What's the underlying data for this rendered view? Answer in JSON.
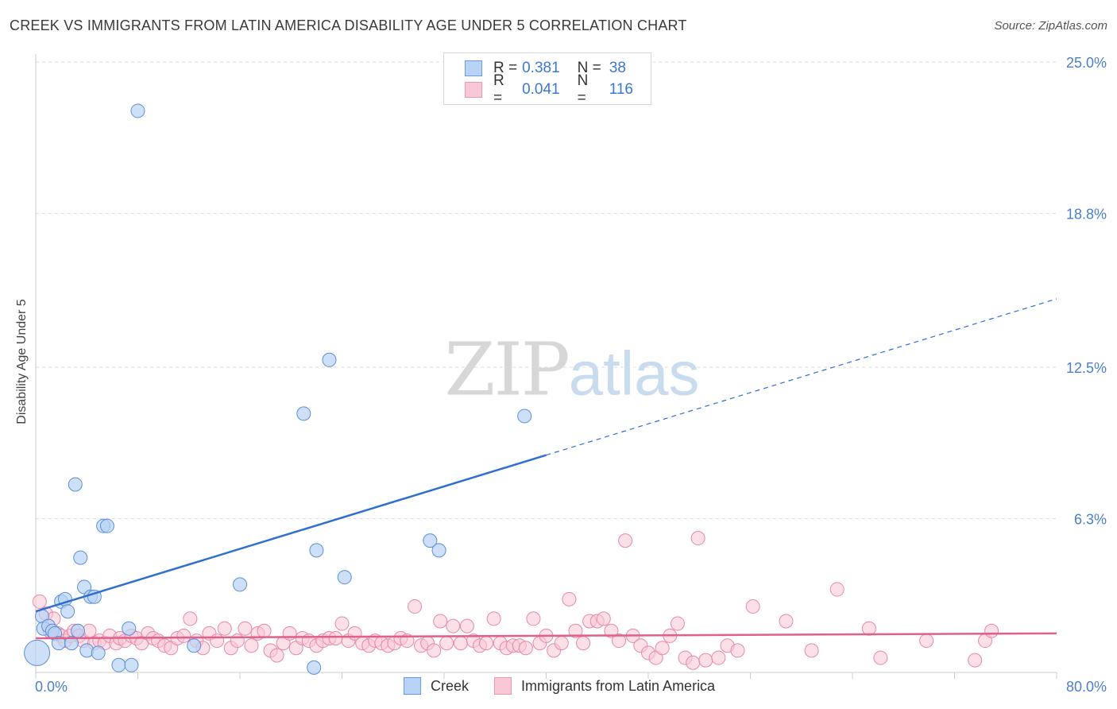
{
  "title": "CREEK VS IMMIGRANTS FROM LATIN AMERICA DISABILITY AGE UNDER 5 CORRELATION CHART",
  "source": "Source: ZipAtlas.com",
  "watermark": {
    "zip": "ZIP",
    "atlas": "atlas"
  },
  "legend": {
    "rows": [
      {
        "r_label": "R =",
        "r_value": "0.381",
        "n_label": "N =",
        "n_value": "38"
      },
      {
        "r_label": "R =",
        "r_value": "0.041",
        "n_label": "N =",
        "n_value": "116"
      }
    ]
  },
  "bottom_legend": {
    "creek": "Creek",
    "immigrants": "Immigrants from Latin America"
  },
  "colors": {
    "creek_fill": "#b8d3f5",
    "creek_stroke": "#5a8fd8",
    "creek_line": "#2f6fd1",
    "immig_fill": "#f9c7d6",
    "immig_stroke": "#e888a6",
    "immig_line": "#e0608a",
    "tick": "#4a7fd0",
    "grid": "#dddddd"
  },
  "chart_data": {
    "type": "scatter",
    "title": "CREEK VS IMMIGRANTS FROM LATIN AMERICA DISABILITY AGE UNDER 5 CORRELATION CHART",
    "xlabel": "",
    "ylabel": "Disability Age Under 5",
    "xlim": [
      0,
      80
    ],
    "ylim": [
      0,
      25
    ],
    "x_tick_labels": [
      "0.0%",
      "80.0%"
    ],
    "y_ticks": [
      6.3,
      12.5,
      18.8,
      25.0
    ],
    "y_tick_labels": [
      "6.3%",
      "12.5%",
      "18.8%",
      "25.0%"
    ],
    "grid": true,
    "series": [
      {
        "name": "Creek",
        "R": 0.381,
        "N": 38,
        "trend": {
          "x0": 0,
          "y0": 2.5,
          "x1": 40,
          "y1": 8.9,
          "extend_to_x": 80,
          "extend_y": 15.3
        },
        "points": [
          [
            0.1,
            0.8
          ],
          [
            0.5,
            2.3
          ],
          [
            0.6,
            1.8
          ],
          [
            1.0,
            1.9
          ],
          [
            1.3,
            1.7
          ],
          [
            1.5,
            1.6
          ],
          [
            1.8,
            1.2
          ],
          [
            2.0,
            2.9
          ],
          [
            2.3,
            3.0
          ],
          [
            2.5,
            2.5
          ],
          [
            2.8,
            1.2
          ],
          [
            3.1,
            7.7
          ],
          [
            3.3,
            1.7
          ],
          [
            3.5,
            4.7
          ],
          [
            3.8,
            3.5
          ],
          [
            4.0,
            0.9
          ],
          [
            4.3,
            3.1
          ],
          [
            4.6,
            3.1
          ],
          [
            4.9,
            0.8
          ],
          [
            5.3,
            6.0
          ],
          [
            5.6,
            6.0
          ],
          [
            6.5,
            0.3
          ],
          [
            7.3,
            1.8
          ],
          [
            7.5,
            0.3
          ],
          [
            8.0,
            23.0
          ],
          [
            12.4,
            1.1
          ],
          [
            16.0,
            3.6
          ],
          [
            21.0,
            10.6
          ],
          [
            21.8,
            0.2
          ],
          [
            22.0,
            5.0
          ],
          [
            23.0,
            12.8
          ],
          [
            24.2,
            3.9
          ],
          [
            30.9,
            5.4
          ],
          [
            31.6,
            5.0
          ],
          [
            38.3,
            10.5
          ]
        ]
      },
      {
        "name": "Immigrants from Latin America",
        "R": 0.041,
        "N": 116,
        "trend": {
          "x0": 0,
          "y0": 1.4,
          "x1": 80,
          "y1": 1.6
        },
        "points": [
          [
            0.3,
            2.9
          ],
          [
            0.8,
            2.4
          ],
          [
            1.1,
            1.7
          ],
          [
            1.4,
            2.2
          ],
          [
            1.7,
            1.6
          ],
          [
            2.0,
            1.5
          ],
          [
            2.3,
            1.3
          ],
          [
            2.7,
            1.5
          ],
          [
            3.0,
            1.7
          ],
          [
            3.4,
            1.5
          ],
          [
            3.7,
            1.3
          ],
          [
            4.2,
            1.7
          ],
          [
            4.6,
            1.2
          ],
          [
            5.0,
            1.3
          ],
          [
            5.4,
            1.2
          ],
          [
            5.8,
            1.5
          ],
          [
            6.3,
            1.2
          ],
          [
            6.6,
            1.4
          ],
          [
            7.0,
            1.3
          ],
          [
            7.5,
            1.5
          ],
          [
            7.9,
            1.4
          ],
          [
            8.3,
            1.2
          ],
          [
            8.8,
            1.6
          ],
          [
            9.2,
            1.4
          ],
          [
            9.6,
            1.3
          ],
          [
            10.1,
            1.1
          ],
          [
            10.6,
            1.0
          ],
          [
            11.1,
            1.4
          ],
          [
            11.6,
            1.5
          ],
          [
            12.1,
            2.2
          ],
          [
            12.6,
            1.3
          ],
          [
            13.1,
            1.0
          ],
          [
            13.6,
            1.6
          ],
          [
            14.2,
            1.3
          ],
          [
            14.8,
            1.8
          ],
          [
            15.3,
            1.0
          ],
          [
            15.8,
            1.3
          ],
          [
            16.4,
            1.8
          ],
          [
            16.9,
            1.1
          ],
          [
            17.4,
            1.6
          ],
          [
            17.9,
            1.7
          ],
          [
            18.4,
            0.9
          ],
          [
            18.9,
            0.7
          ],
          [
            19.4,
            1.2
          ],
          [
            19.9,
            1.6
          ],
          [
            20.4,
            1.0
          ],
          [
            20.9,
            1.4
          ],
          [
            21.4,
            1.3
          ],
          [
            22.0,
            1.1
          ],
          [
            22.5,
            1.3
          ],
          [
            23.0,
            1.4
          ],
          [
            23.5,
            1.4
          ],
          [
            24.0,
            2.0
          ],
          [
            24.5,
            1.3
          ],
          [
            25.0,
            1.6
          ],
          [
            25.6,
            1.2
          ],
          [
            26.1,
            1.1
          ],
          [
            26.6,
            1.3
          ],
          [
            27.1,
            1.2
          ],
          [
            27.6,
            1.1
          ],
          [
            28.1,
            1.2
          ],
          [
            28.6,
            1.4
          ],
          [
            29.1,
            1.3
          ],
          [
            29.7,
            2.7
          ],
          [
            30.2,
            1.1
          ],
          [
            30.7,
            1.2
          ],
          [
            31.2,
            0.9
          ],
          [
            31.7,
            2.1
          ],
          [
            32.2,
            1.2
          ],
          [
            32.7,
            1.9
          ],
          [
            33.3,
            1.2
          ],
          [
            33.8,
            1.9
          ],
          [
            34.3,
            1.3
          ],
          [
            34.8,
            1.1
          ],
          [
            35.3,
            1.2
          ],
          [
            35.9,
            2.2
          ],
          [
            36.4,
            1.2
          ],
          [
            36.9,
            1.0
          ],
          [
            37.4,
            1.1
          ],
          [
            37.9,
            1.1
          ],
          [
            38.4,
            1.0
          ],
          [
            39.0,
            2.2
          ],
          [
            39.5,
            1.2
          ],
          [
            40.0,
            1.5
          ],
          [
            40.6,
            0.9
          ],
          [
            41.2,
            1.2
          ],
          [
            41.8,
            3.0
          ],
          [
            42.3,
            1.7
          ],
          [
            42.9,
            1.2
          ],
          [
            43.4,
            2.1
          ],
          [
            44.0,
            2.1
          ],
          [
            44.5,
            2.2
          ],
          [
            45.1,
            1.7
          ],
          [
            45.7,
            1.3
          ],
          [
            46.2,
            5.4
          ],
          [
            46.8,
            1.5
          ],
          [
            47.4,
            1.1
          ],
          [
            48.0,
            0.8
          ],
          [
            48.6,
            0.6
          ],
          [
            49.1,
            1.0
          ],
          [
            49.7,
            1.5
          ],
          [
            50.3,
            2.0
          ],
          [
            50.9,
            0.6
          ],
          [
            51.5,
            0.4
          ],
          [
            51.9,
            5.5
          ],
          [
            52.5,
            0.5
          ],
          [
            53.5,
            0.6
          ],
          [
            54.2,
            1.1
          ],
          [
            55.0,
            0.9
          ],
          [
            56.2,
            2.7
          ],
          [
            58.8,
            2.1
          ],
          [
            60.8,
            0.9
          ],
          [
            62.8,
            3.4
          ],
          [
            65.3,
            1.8
          ],
          [
            66.2,
            0.6
          ],
          [
            69.8,
            1.3
          ],
          [
            73.6,
            0.5
          ],
          [
            74.4,
            1.3
          ],
          [
            74.9,
            1.7
          ]
        ]
      }
    ]
  }
}
